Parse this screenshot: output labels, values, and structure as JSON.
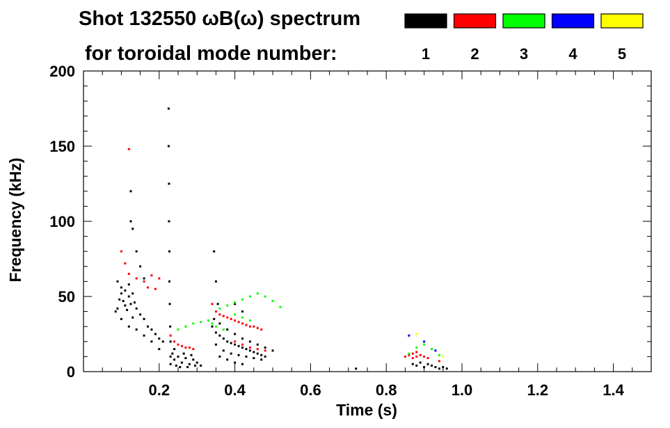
{
  "chart_data": {
    "type": "scatter",
    "title_line1": "Shot 132550 ωB(ω) spectrum",
    "title_line2": "for toroidal mode number:",
    "xlabel": "Time (s)",
    "ylabel": "Frequency (kHz)",
    "xlim": [
      0.0,
      1.5
    ],
    "ylim": [
      0,
      200
    ],
    "x_ticks": [
      {
        "value": 0.2,
        "label": "0.2"
      },
      {
        "value": 0.4,
        "label": "0.4"
      },
      {
        "value": 0.6,
        "label": "0.6"
      },
      {
        "value": 0.8,
        "label": "0.8"
      },
      {
        "value": 1.0,
        "label": "1.0"
      },
      {
        "value": 1.2,
        "label": "1.2"
      },
      {
        "value": 1.4,
        "label": "1.4"
      }
    ],
    "y_ticks": [
      {
        "value": 0,
        "label": "0"
      },
      {
        "value": 50,
        "label": "50"
      },
      {
        "value": 100,
        "label": "100"
      },
      {
        "value": 150,
        "label": "150"
      },
      {
        "value": 200,
        "label": "200"
      }
    ],
    "legend": [
      {
        "label": "1",
        "color": "#000000"
      },
      {
        "label": "2",
        "color": "#ff0000"
      },
      {
        "label": "3",
        "color": "#00ff00"
      },
      {
        "label": "4",
        "color": "#0000ff"
      },
      {
        "label": "5",
        "color": "#ffff00"
      }
    ],
    "series": [
      {
        "name": "1",
        "color": "#000000",
        "points": [
          [
            0.085,
            40
          ],
          [
            0.09,
            42
          ],
          [
            0.095,
            48
          ],
          [
            0.1,
            52
          ],
          [
            0.105,
            47
          ],
          [
            0.11,
            44
          ],
          [
            0.115,
            41
          ],
          [
            0.12,
            50
          ],
          [
            0.125,
            45
          ],
          [
            0.13,
            36
          ],
          [
            0.09,
            60
          ],
          [
            0.1,
            56
          ],
          [
            0.11,
            54
          ],
          [
            0.12,
            58
          ],
          [
            0.13,
            52
          ],
          [
            0.135,
            46
          ],
          [
            0.14,
            42
          ],
          [
            0.15,
            38
          ],
          [
            0.16,
            35
          ],
          [
            0.17,
            30
          ],
          [
            0.18,
            28
          ],
          [
            0.19,
            25
          ],
          [
            0.2,
            22
          ],
          [
            0.21,
            20
          ],
          [
            0.1,
            35
          ],
          [
            0.12,
            30
          ],
          [
            0.14,
            28
          ],
          [
            0.16,
            24
          ],
          [
            0.18,
            20
          ],
          [
            0.2,
            15
          ],
          [
            0.125,
            100
          ],
          [
            0.125,
            120
          ],
          [
            0.13,
            95
          ],
          [
            0.14,
            80
          ],
          [
            0.15,
            70
          ],
          [
            0.16,
            62
          ],
          [
            0.225,
            175
          ],
          [
            0.225,
            150
          ],
          [
            0.226,
            125
          ],
          [
            0.226,
            100
          ],
          [
            0.227,
            80
          ],
          [
            0.227,
            60
          ],
          [
            0.228,
            45
          ],
          [
            0.229,
            30
          ],
          [
            0.23,
            20
          ],
          [
            0.23,
            10
          ],
          [
            0.23,
            5
          ],
          [
            0.24,
            8
          ],
          [
            0.25,
            10
          ],
          [
            0.26,
            6
          ],
          [
            0.27,
            9
          ],
          [
            0.28,
            5
          ],
          [
            0.29,
            8
          ],
          [
            0.3,
            6
          ],
          [
            0.31,
            4
          ],
          [
            0.24,
            15
          ],
          [
            0.235,
            12
          ],
          [
            0.245,
            4
          ],
          [
            0.255,
            3
          ],
          [
            0.265,
            12
          ],
          [
            0.275,
            3
          ],
          [
            0.285,
            11
          ],
          [
            0.295,
            4
          ],
          [
            0.34,
            30
          ],
          [
            0.35,
            26
          ],
          [
            0.36,
            24
          ],
          [
            0.37,
            22
          ],
          [
            0.38,
            20
          ],
          [
            0.39,
            19
          ],
          [
            0.4,
            18
          ],
          [
            0.41,
            17
          ],
          [
            0.42,
            16
          ],
          [
            0.43,
            15
          ],
          [
            0.44,
            14
          ],
          [
            0.45,
            13
          ],
          [
            0.46,
            12
          ],
          [
            0.47,
            11
          ],
          [
            0.48,
            10
          ],
          [
            0.35,
            18
          ],
          [
            0.37,
            14
          ],
          [
            0.39,
            12
          ],
          [
            0.41,
            11
          ],
          [
            0.43,
            10
          ],
          [
            0.45,
            9
          ],
          [
            0.47,
            8
          ],
          [
            0.36,
            10
          ],
          [
            0.38,
            8
          ],
          [
            0.4,
            6
          ],
          [
            0.42,
            5
          ],
          [
            0.345,
            80
          ],
          [
            0.35,
            60
          ],
          [
            0.355,
            45
          ],
          [
            0.345,
            35
          ],
          [
            0.36,
            32
          ],
          [
            0.38,
            28
          ],
          [
            0.4,
            25
          ],
          [
            0.42,
            22
          ],
          [
            0.44,
            20
          ],
          [
            0.46,
            18
          ],
          [
            0.48,
            16
          ],
          [
            0.5,
            14
          ],
          [
            0.4,
            45
          ],
          [
            0.42,
            40
          ],
          [
            0.72,
            2
          ],
          [
            0.87,
            5
          ],
          [
            0.88,
            4
          ],
          [
            0.89,
            6
          ],
          [
            0.9,
            3
          ],
          [
            0.91,
            5
          ],
          [
            0.92,
            4
          ],
          [
            0.93,
            3
          ],
          [
            0.94,
            2
          ],
          [
            0.95,
            3
          ],
          [
            0.96,
            2
          ]
        ]
      },
      {
        "name": "2",
        "color": "#ff0000",
        "points": [
          [
            0.12,
            148
          ],
          [
            0.1,
            80
          ],
          [
            0.11,
            72
          ],
          [
            0.12,
            65
          ],
          [
            0.14,
            62
          ],
          [
            0.16,
            60
          ],
          [
            0.18,
            64
          ],
          [
            0.2,
            62
          ],
          [
            0.17,
            56
          ],
          [
            0.19,
            55
          ],
          [
            0.23,
            24
          ],
          [
            0.24,
            20
          ],
          [
            0.25,
            18
          ],
          [
            0.26,
            17
          ],
          [
            0.27,
            16
          ],
          [
            0.28,
            16
          ],
          [
            0.29,
            15
          ],
          [
            0.34,
            45
          ],
          [
            0.35,
            40
          ],
          [
            0.36,
            38
          ],
          [
            0.37,
            37
          ],
          [
            0.38,
            36
          ],
          [
            0.39,
            35
          ],
          [
            0.4,
            34
          ],
          [
            0.41,
            33
          ],
          [
            0.42,
            32
          ],
          [
            0.43,
            31
          ],
          [
            0.44,
            30
          ],
          [
            0.45,
            30
          ],
          [
            0.46,
            29
          ],
          [
            0.47,
            28
          ],
          [
            0.4,
            20
          ],
          [
            0.42,
            18
          ],
          [
            0.44,
            16
          ],
          [
            0.46,
            15
          ],
          [
            0.48,
            14
          ],
          [
            0.85,
            10
          ],
          [
            0.86,
            11
          ],
          [
            0.87,
            12
          ],
          [
            0.88,
            13
          ],
          [
            0.89,
            11
          ],
          [
            0.9,
            10
          ],
          [
            0.87,
            9
          ],
          [
            0.88,
            10
          ],
          [
            0.91,
            9
          ],
          [
            0.94,
            7
          ]
        ]
      },
      {
        "name": "3",
        "color": "#00ff00",
        "points": [
          [
            0.25,
            28
          ],
          [
            0.27,
            30
          ],
          [
            0.29,
            32
          ],
          [
            0.31,
            33
          ],
          [
            0.33,
            34
          ],
          [
            0.34,
            32
          ],
          [
            0.36,
            42
          ],
          [
            0.38,
            44
          ],
          [
            0.4,
            46
          ],
          [
            0.42,
            48
          ],
          [
            0.44,
            50
          ],
          [
            0.46,
            52
          ],
          [
            0.48,
            50
          ],
          [
            0.5,
            47
          ],
          [
            0.52,
            43
          ],
          [
            0.4,
            38
          ],
          [
            0.42,
            36
          ],
          [
            0.44,
            34
          ],
          [
            0.35,
            30
          ],
          [
            0.37,
            28
          ],
          [
            0.86,
            12
          ],
          [
            0.88,
            16
          ],
          [
            0.9,
            18
          ],
          [
            0.92,
            15
          ],
          [
            0.94,
            11
          ]
        ]
      },
      {
        "name": "4",
        "color": "#0000ff",
        "points": [
          [
            0.86,
            24
          ],
          [
            0.9,
            20
          ],
          [
            0.93,
            14
          ]
        ]
      },
      {
        "name": "5",
        "color": "#ffff00",
        "points": [
          [
            0.88,
            25
          ],
          [
            0.95,
            10
          ]
        ]
      }
    ]
  }
}
